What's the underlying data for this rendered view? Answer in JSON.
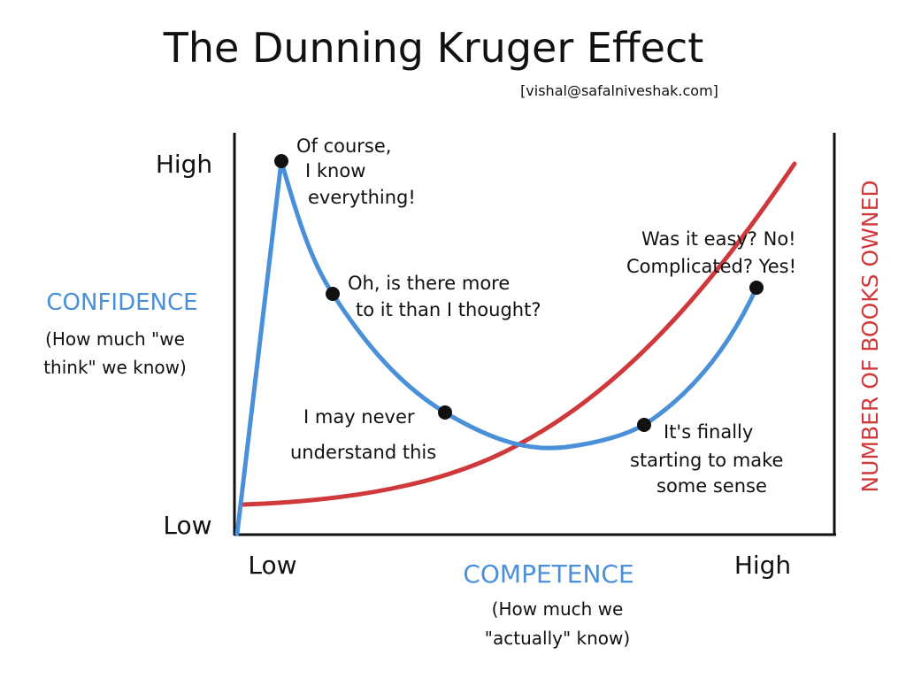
{
  "header": {
    "title": "The Dunning Kruger Effect",
    "credit": "[vishal@safalniveshak.com]"
  },
  "y_axis": {
    "high": "High",
    "low": "Low",
    "label": "CONFIDENCE",
    "sublabel": [
      "(How much \"we",
      "think\" we know)"
    ]
  },
  "x_axis": {
    "low": "Low",
    "high": "High",
    "label": "COMPETENCE",
    "sublabel": [
      "(How much we",
      "\"actually\" know)"
    ]
  },
  "right_axis": {
    "label": "NUMBER OF BOOKS OWNED"
  },
  "annotations": [
    {
      "lines": [
        "Of course,",
        "I know",
        "everything!"
      ]
    },
    {
      "lines": [
        "Oh, is there more",
        "to it than I thought?"
      ]
    },
    {
      "lines": [
        "I may never",
        "understand this"
      ]
    },
    {
      "lines": [
        "It's finally",
        "starting to make",
        "some sense"
      ]
    },
    {
      "lines": [
        "Was it easy? No!",
        "Complicated? Yes!"
      ]
    }
  ]
}
